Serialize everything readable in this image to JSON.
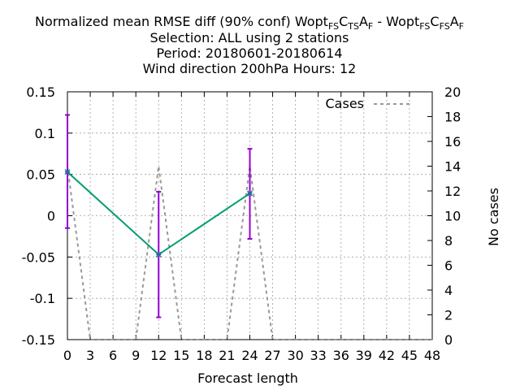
{
  "chart_data": {
    "type": "line",
    "title_lines": [
      "Selection: ALL using     2 stations",
      "Period: 20180601-20180614",
      "Wind direction 200hPa   Hours:  12"
    ],
    "title_main": {
      "prefix": "Normalized mean RMSE diff (90% conf) Wopt",
      "a": "FS",
      "b": "C",
      "c": "TS",
      "d": "A",
      "e": "F",
      "sep": " - Wopt",
      "f": "FS",
      "g": "C",
      "h": "FS",
      "i": "A",
      "j": "F"
    },
    "xlabel": "Forecast length",
    "y2label": "No cases",
    "xlim": [
      0,
      48
    ],
    "ylim": [
      -0.15,
      0.15
    ],
    "y2lim": [
      0,
      20
    ],
    "x_ticks": [
      0,
      3,
      6,
      9,
      12,
      15,
      18,
      21,
      24,
      27,
      30,
      33,
      36,
      39,
      42,
      45,
      48
    ],
    "y_ticks": [
      "0.15",
      "0.1",
      "0.05",
      "0",
      "-0.05",
      "-0.1",
      "-0.15"
    ],
    "y2_ticks": [
      "20",
      "18",
      "16",
      "14",
      "12",
      "10",
      "8",
      "6",
      "4",
      "2",
      "0"
    ],
    "grid": true,
    "series": [
      {
        "color": "#009e73",
        "x": [
          0,
          12,
          24
        ],
        "y": [
          0.053,
          -0.047,
          0.027
        ],
        "err_low": [
          -0.015,
          -0.123,
          -0.028
        ],
        "err_high": [
          0.122,
          0.029,
          0.081
        ],
        "err_color": "#9400d3"
      },
      {
        "name": "Cases",
        "axis": "y2",
        "color": "#999999",
        "x": [
          0,
          3,
          9,
          12,
          15,
          21,
          24,
          27,
          48
        ],
        "y": [
          14,
          0,
          0,
          14,
          0,
          0,
          14,
          0,
          0
        ]
      }
    ],
    "legend": {
      "label": "Cases",
      "position": "top-right"
    }
  }
}
